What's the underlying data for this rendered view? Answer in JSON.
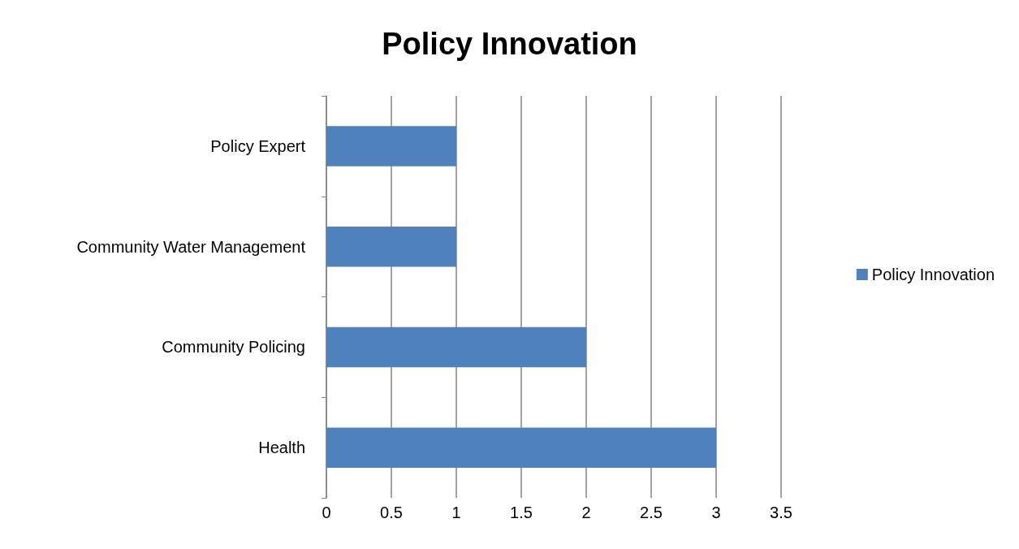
{
  "chart_data": {
    "type": "bar",
    "title": "Policy Innovation",
    "orientation": "horizontal",
    "categories": [
      "Policy Expert",
      "Community Water Management",
      "Community Policing",
      "Health"
    ],
    "series": [
      {
        "name": "Policy Innovation",
        "color": "#4f81bd",
        "values": [
          1,
          1,
          2,
          3
        ]
      }
    ],
    "xlim": [
      0,
      3.5
    ],
    "xticks": [
      0,
      0.5,
      1,
      1.5,
      2,
      2.5,
      3,
      3.5
    ],
    "grid": "x",
    "legend": "right"
  }
}
